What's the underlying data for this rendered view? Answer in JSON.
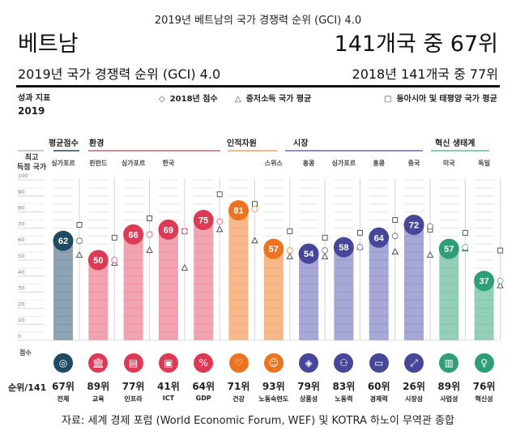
{
  "header": {
    "top_title": "2019년 베트남의 국가 경쟁력 순위 (GCI) 4.0",
    "country": "베트남",
    "rank_headline": "141개국 중 67위",
    "subtitle_left": "2019년 국가 경쟁력 순위 (GCI) 4.0",
    "subtitle_right": "2018년 141개국 중 77위"
  },
  "performance": {
    "label": "성과 지표",
    "year": "2019"
  },
  "legend": {
    "prev_year": {
      "symbol": "◇",
      "label": "2018년 점수"
    },
    "lower_middle": {
      "symbol": "△",
      "label": "중저소득 국가 평균"
    },
    "east_asia": {
      "symbol": "□",
      "label": "동아시아 및 태평양 국가 평균"
    }
  },
  "axis": {
    "best_title_line1": "최고",
    "best_title_line2": "득점 국가",
    "score_label": "점수",
    "rank_label": "순위/141"
  },
  "categories": [
    {
      "label": "평균점수",
      "color": "#5d7384"
    },
    {
      "label": "환경",
      "color": "#d98a97"
    },
    {
      "label": "인적자원",
      "color": "#f0b98c"
    },
    {
      "label": "시장",
      "color": "#8e8fc4"
    },
    {
      "label": "혁신 생태계",
      "color": "#8cc9b0"
    }
  ],
  "colors": {
    "overall_dark": "#1f4a63",
    "overall_bar": "#8fa4b3",
    "environment_dark": "#dc3a55",
    "environment_bar": "#f2a3b0",
    "human_dark": "#ec7320",
    "human_bar": "#f7b98a",
    "market_dark": "#47479a",
    "market_bar": "#a7a8d6",
    "innovation_dark": "#2f9d78",
    "innovation_bar": "#93d0b7"
  },
  "chart_data": {
    "type": "bar",
    "title": "2019년 베트남의 국가 경쟁력 순위 (GCI) 4.0",
    "ylabel": "점수",
    "ylim": [
      0,
      100
    ],
    "yticks": [
      0,
      10,
      20,
      30,
      40,
      50,
      60,
      70,
      80,
      90,
      100
    ],
    "grid": true,
    "legend_position": "top",
    "categories": [
      "전체",
      "교육",
      "인프라",
      "ICT",
      "GDP",
      "건강",
      "노동숙련도",
      "상품성",
      "노동력",
      "경제력",
      "시장성",
      "사업성",
      "혁신성"
    ],
    "groups": [
      "평균점수",
      "환경",
      "환경",
      "환경",
      "환경",
      "인적자원",
      "인적자원",
      "시장",
      "시장",
      "시장",
      "시장",
      "혁신 생태계",
      "혁신 생태계"
    ],
    "best_country": [
      "싱가포르",
      "핀란드",
      "싱가포르",
      "한국",
      "",
      "",
      "스위스",
      "홍콩",
      "싱가포르",
      "홍콩",
      "중국",
      "미국",
      "독일"
    ],
    "series": [
      {
        "name": "2019 점수",
        "values": [
          62,
          50,
          66,
          69,
          75,
          81,
          57,
          54,
          58,
          64,
          72,
          57,
          37
        ]
      },
      {
        "name": "2018년 점수",
        "values": [
          62,
          50,
          66,
          68,
          74,
          82,
          56,
          56,
          58,
          65,
          71,
          58,
          37
        ]
      },
      {
        "name": "중저소득 국가 평균",
        "values": [
          53,
          48,
          56,
          45,
          69,
          62,
          52,
          52,
          58,
          55,
          53,
          57,
          34
        ]
      },
      {
        "name": "동아시아 및 태평양 국가 평균",
        "values": [
          72,
          64,
          76,
          68,
          91,
          85,
          68,
          64,
          67,
          75,
          69,
          67,
          56
        ]
      }
    ],
    "ranks": [
      "67위",
      "89위",
      "77위",
      "41위",
      "64위",
      "71위",
      "93위",
      "79위",
      "83위",
      "60위",
      "26위",
      "89위",
      "76위"
    ]
  },
  "pillars": [
    {
      "name": "전체",
      "rank": "67위",
      "icon": "target-medal-icon",
      "glyph": "◎",
      "group": "overall"
    },
    {
      "name": "교육",
      "rank": "89위",
      "icon": "building-columns-icon",
      "glyph": "🏛",
      "group": "environment"
    },
    {
      "name": "인프라",
      "rank": "77위",
      "icon": "train-icon",
      "glyph": "▤",
      "group": "environment"
    },
    {
      "name": "ICT",
      "rank": "41위",
      "icon": "chip-icon",
      "glyph": "▣",
      "group": "environment"
    },
    {
      "name": "GDP",
      "rank": "64위",
      "icon": "percent-growth-icon",
      "glyph": "%",
      "group": "environment"
    },
    {
      "name": "건강",
      "rank": "71위",
      "icon": "heart-pulse-icon",
      "glyph": "♡",
      "group": "human"
    },
    {
      "name": "노동숙련도",
      "rank": "93위",
      "icon": "graduate-icon",
      "glyph": "☺",
      "group": "human"
    },
    {
      "name": "상품성",
      "rank": "79위",
      "icon": "tag-icon",
      "glyph": "◈",
      "group": "market"
    },
    {
      "name": "노동력",
      "rank": "83위",
      "icon": "people-network-icon",
      "glyph": "⚇",
      "group": "market"
    },
    {
      "name": "경제력",
      "rank": "60위",
      "icon": "credit-card-icon",
      "glyph": "▭",
      "group": "market"
    },
    {
      "name": "시장성",
      "rank": "26위",
      "icon": "expand-arrows-icon",
      "glyph": "⤢",
      "group": "market"
    },
    {
      "name": "사업성",
      "rank": "89위",
      "icon": "buildings-icon",
      "glyph": "▥",
      "group": "innovation"
    },
    {
      "name": "혁신성",
      "rank": "76위",
      "icon": "lightbulb-icon",
      "glyph": "♀",
      "group": "innovation"
    }
  ],
  "footer": {
    "source": "자료: 세계 경제 포럼 (World Economic Forum, WEF) 및 KOTRA 하노이 무역관 종합"
  }
}
